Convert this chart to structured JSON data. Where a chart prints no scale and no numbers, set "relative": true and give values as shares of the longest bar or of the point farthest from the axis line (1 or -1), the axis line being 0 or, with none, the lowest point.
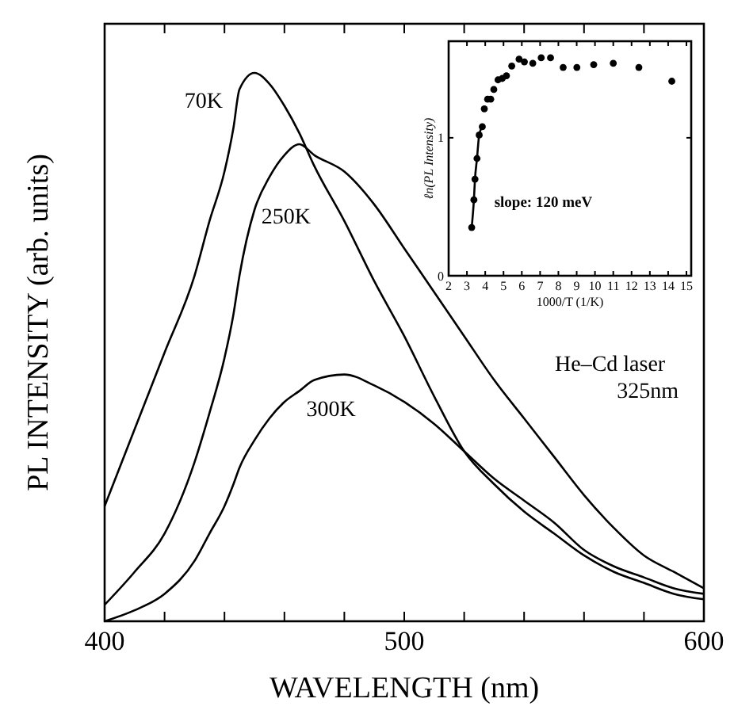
{
  "chart_data": [
    {
      "type": "line",
      "relative": true,
      "xlabel": "WAVELENGTH (nm)",
      "ylabel": "PL INTENSITY (arb. units)",
      "xlim": [
        400,
        600
      ],
      "xticks": [
        400,
        {
          "value": 420,
          "label": null
        },
        {
          "value": 440,
          "label": null
        },
        {
          "value": 460,
          "label": null
        },
        {
          "value": 480,
          "label": null
        },
        500,
        {
          "value": 520,
          "label": null
        },
        {
          "value": 540,
          "label": null
        },
        {
          "value": 560,
          "label": null
        },
        {
          "value": 580,
          "label": null
        },
        600
      ],
      "x": [
        400,
        410,
        420,
        430,
        435,
        440,
        443,
        445,
        450,
        455,
        460,
        465,
        470,
        480,
        490,
        500,
        510,
        520,
        530,
        540,
        550,
        560,
        570,
        580,
        590,
        600
      ],
      "series": [
        {
          "name": "70K",
          "color": "#000000",
          "values": [
            0.21,
            0.35,
            0.49,
            0.63,
            0.73,
            0.82,
            0.9,
            0.97,
            1.0,
            0.98,
            0.94,
            0.89,
            0.83,
            0.73,
            0.62,
            0.52,
            0.41,
            0.31,
            0.25,
            0.2,
            0.16,
            0.12,
            0.09,
            0.07,
            0.05,
            0.04
          ]
        },
        {
          "name": "250K",
          "color": "#000000",
          "values": [
            0.03,
            0.09,
            0.16,
            0.29,
            0.38,
            0.48,
            0.56,
            0.63,
            0.75,
            0.81,
            0.85,
            0.87,
            0.85,
            0.82,
            0.76,
            0.68,
            0.6,
            0.52,
            0.44,
            0.37,
            0.3,
            0.23,
            0.17,
            0.12,
            0.09,
            0.06
          ]
        },
        {
          "name": "300K",
          "color": "#000000",
          "values": [
            0.0,
            0.02,
            0.05,
            0.11,
            0.16,
            0.21,
            0.25,
            0.28,
            0.33,
            0.37,
            0.4,
            0.42,
            0.44,
            0.45,
            0.43,
            0.4,
            0.36,
            0.31,
            0.26,
            0.22,
            0.18,
            0.13,
            0.1,
            0.08,
            0.06,
            0.05
          ]
        }
      ],
      "annotations": [
        "He–Cd laser",
        "325nm"
      ]
    },
    {
      "type": "scatter",
      "xlabel": "1000/T (1/K)",
      "ylabel": "ℓn(PL Intensity)",
      "xlim": [
        2,
        15
      ],
      "xticks": [
        2,
        3,
        4,
        5,
        6,
        7,
        8,
        9,
        10,
        11,
        12,
        13,
        14,
        15
      ],
      "ylim": [
        0,
        1.7
      ],
      "yticks": [
        0,
        1
      ],
      "series": [
        {
          "color": "#000000",
          "marker": "circle",
          "x": [
            3.26,
            3.38,
            3.44,
            3.55,
            3.67,
            3.84,
            3.95,
            4.13,
            4.3,
            4.47,
            4.7,
            4.93,
            5.16,
            5.45,
            5.85,
            6.14,
            6.6,
            7.06,
            7.57,
            8.26,
            9.01,
            9.93,
            11.0,
            12.4,
            14.2
          ],
          "values": [
            0.35,
            0.55,
            0.7,
            0.85,
            1.02,
            1.08,
            1.21,
            1.28,
            1.28,
            1.35,
            1.42,
            1.43,
            1.45,
            1.52,
            1.57,
            1.55,
            1.54,
            1.58,
            1.58,
            1.51,
            1.51,
            1.53,
            1.54,
            1.51,
            1.41
          ]
        },
        {
          "type": "line",
          "color": "#000000",
          "x": [
            3.26,
            3.38,
            3.44,
            3.55,
            3.67,
            3.84
          ],
          "values": [
            0.35,
            0.55,
            0.7,
            0.85,
            1.02,
            1.08
          ]
        }
      ],
      "annotations": [
        "slope: 120 meV"
      ]
    }
  ]
}
